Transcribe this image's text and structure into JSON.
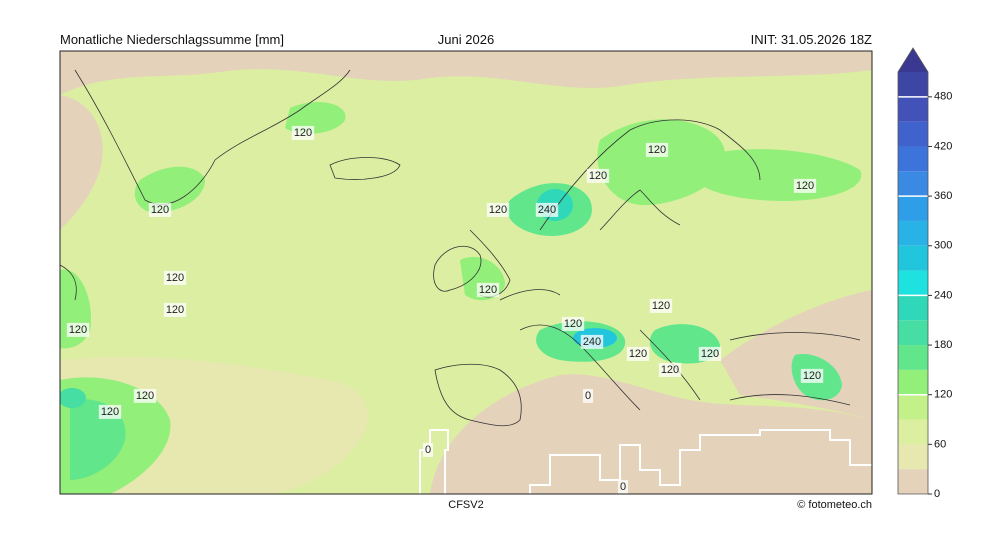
{
  "header": {
    "left": "Monatliche Niederschlagssumme [mm]",
    "center": "Juni 2026",
    "right": "INIT: 31.05.2026 18Z"
  },
  "footer": {
    "model": "CFSV2",
    "credit": "© fotometeo.ch"
  },
  "colorbar": {
    "levels": [
      0,
      30,
      60,
      90,
      120,
      150,
      180,
      210,
      240,
      270,
      300,
      330,
      360,
      390,
      420,
      450,
      480,
      510
    ],
    "colors": [
      "#e4d2ba",
      "#e6e8b0",
      "#dcefa0",
      "#c4f08a",
      "#92ef7a",
      "#62e68c",
      "#46dea2",
      "#2fd8b8",
      "#1ee2e0",
      "#22c6dc",
      "#28b2e6",
      "#2f9ee8",
      "#3a8ae4",
      "#3c74dc",
      "#4062cc",
      "#4252b8",
      "#3e46a4"
    ],
    "extend_color": "#3a3890",
    "ticks": [
      0,
      60,
      120,
      180,
      240,
      300,
      360,
      420,
      480
    ],
    "highlight_levels": [
      120,
      240,
      360,
      480
    ]
  },
  "contour_labels": [
    120,
    120,
    120,
    120,
    120,
    120,
    120,
    120,
    240,
    120,
    120,
    120,
    120,
    120,
    240,
    120,
    120,
    120,
    120,
    120,
    0,
    0,
    0
  ]
}
